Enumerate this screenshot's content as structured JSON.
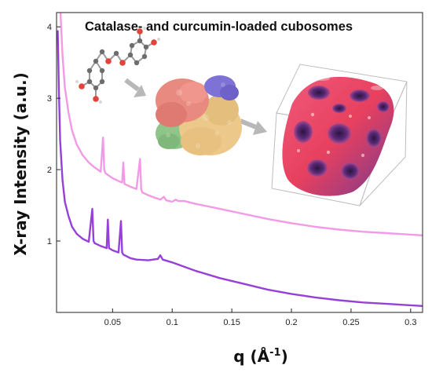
{
  "chart_data": {
    "type": "line",
    "title": "Catalase- and curcumin-loaded cubosomes",
    "xlabel_main": "q (Å",
    "xlabel_sup": "-1",
    "xlabel_close": ")",
    "ylabel": "X-ray Intensity (a.u.)",
    "xlim": [
      0.003,
      0.31
    ],
    "ylim": [
      0,
      4.2
    ],
    "x_ticks": [
      0.05,
      0.1,
      0.15,
      0.2,
      0.25,
      0.3
    ],
    "x_tick_labels": [
      "0.05",
      "0.1",
      "0.15",
      "0.2",
      "0.25",
      "0.3"
    ],
    "y_ticks": [
      1,
      2,
      3,
      4
    ],
    "y_tick_labels": [
      "1",
      "2",
      "3",
      "4"
    ],
    "grid": false,
    "legend": "none",
    "series": [
      {
        "color": "#f29ae6",
        "x": [
          0.006,
          0.008,
          0.01,
          0.013,
          0.016,
          0.02,
          0.025,
          0.03,
          0.035,
          0.04,
          0.042,
          0.043,
          0.044,
          0.05,
          0.055,
          0.058,
          0.059,
          0.06,
          0.065,
          0.07,
          0.073,
          0.074,
          0.075,
          0.08,
          0.085,
          0.09,
          0.093,
          0.095,
          0.1,
          0.103,
          0.105,
          0.11,
          0.12,
          0.14,
          0.16,
          0.18,
          0.2,
          0.22,
          0.24,
          0.26,
          0.28,
          0.3,
          0.31
        ],
        "y": [
          4.3,
          3.6,
          3.15,
          2.8,
          2.55,
          2.35,
          2.2,
          2.1,
          2.03,
          1.97,
          2.45,
          2.0,
          1.95,
          1.88,
          1.84,
          1.82,
          2.1,
          1.8,
          1.76,
          1.73,
          2.15,
          1.72,
          1.68,
          1.64,
          1.61,
          1.58,
          1.62,
          1.57,
          1.55,
          1.58,
          1.56,
          1.56,
          1.52,
          1.45,
          1.38,
          1.31,
          1.25,
          1.2,
          1.16,
          1.13,
          1.11,
          1.09,
          1.08
        ]
      },
      {
        "color": "#9640d8",
        "x": [
          0.004,
          0.005,
          0.006,
          0.008,
          0.01,
          0.013,
          0.016,
          0.02,
          0.025,
          0.03,
          0.033,
          0.034,
          0.035,
          0.04,
          0.045,
          0.046,
          0.047,
          0.05,
          0.055,
          0.057,
          0.058,
          0.059,
          0.065,
          0.07,
          0.08,
          0.088,
          0.09,
          0.092,
          0.1,
          0.11,
          0.12,
          0.14,
          0.16,
          0.18,
          0.2,
          0.22,
          0.24,
          0.26,
          0.28,
          0.3,
          0.31
        ],
        "y": [
          3.95,
          3.1,
          2.4,
          1.85,
          1.55,
          1.35,
          1.2,
          1.1,
          1.03,
          0.99,
          1.45,
          1.0,
          0.97,
          0.93,
          0.9,
          1.3,
          0.9,
          0.87,
          0.84,
          1.28,
          0.84,
          0.81,
          0.76,
          0.74,
          0.73,
          0.75,
          0.8,
          0.74,
          0.7,
          0.64,
          0.58,
          0.48,
          0.4,
          0.32,
          0.26,
          0.21,
          0.17,
          0.14,
          0.12,
          0.1,
          0.09
        ]
      }
    ]
  }
}
